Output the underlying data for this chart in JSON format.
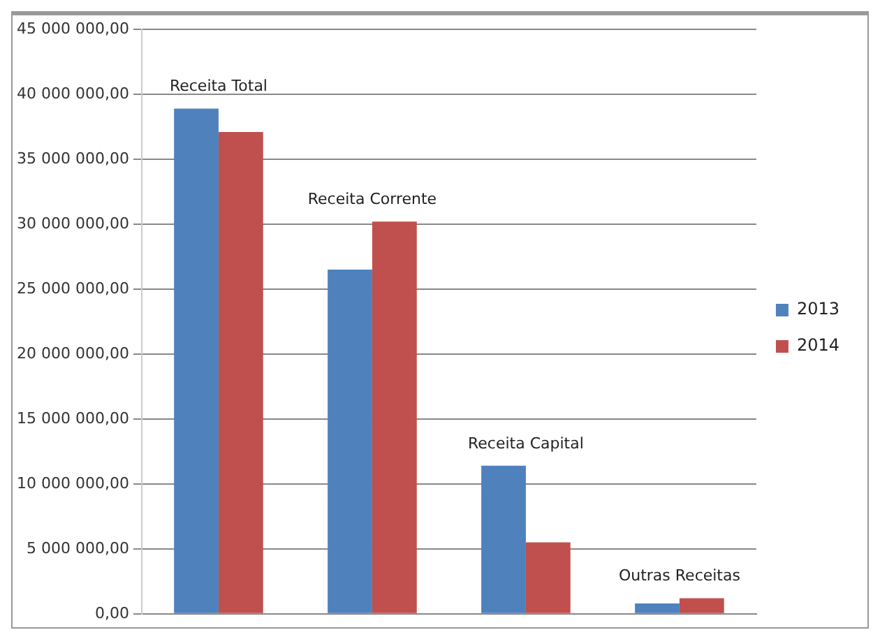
{
  "chart_data": {
    "type": "bar",
    "categories": [
      "Receita Total",
      "Receita Corrente",
      "Receita Capital",
      "Outras Receitas"
    ],
    "series": [
      {
        "name": "2013",
        "color": "#4f81bd",
        "values": [
          38900000,
          26500000,
          11400000,
          800000
        ]
      },
      {
        "name": "2014",
        "color": "#c0504d",
        "values": [
          37100000,
          30200000,
          5500000,
          1200000
        ]
      }
    ],
    "ylim": [
      0,
      45000000
    ],
    "yticks": [
      {
        "value": 0,
        "label": "0,00"
      },
      {
        "value": 5000000,
        "label": "5 000 000,00"
      },
      {
        "value": 10000000,
        "label": "10 000 000,00"
      },
      {
        "value": 15000000,
        "label": "15 000 000,00"
      },
      {
        "value": 20000000,
        "label": "20 000 000,00"
      },
      {
        "value": 25000000,
        "label": "25 000 000,00"
      },
      {
        "value": 30000000,
        "label": "30 000 000,00"
      },
      {
        "value": 35000000,
        "label": "35 000 000,00"
      },
      {
        "value": 40000000,
        "label": "40 000 000,00"
      },
      {
        "value": 45000000,
        "label": "45 000 000,00"
      }
    ],
    "grid": "y",
    "legend": "right"
  }
}
